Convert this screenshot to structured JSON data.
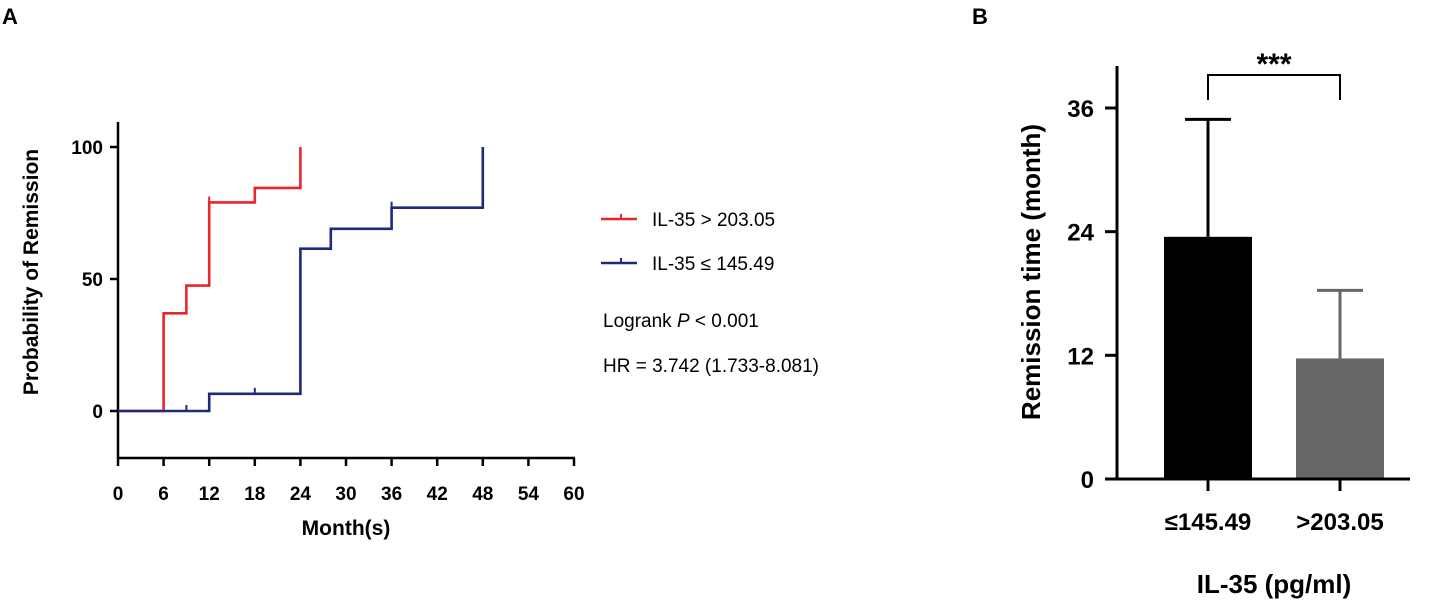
{
  "chart_data": [
    {
      "panel": "A",
      "type": "line",
      "subtype": "kaplan-meier-step",
      "xlabel": "Month(s)",
      "ylabel": "Probability of Remission",
      "xlim": [
        0,
        60
      ],
      "ylim": [
        -17,
        110
      ],
      "x_ticks": [
        0,
        6,
        12,
        18,
        24,
        30,
        36,
        42,
        48,
        54,
        60
      ],
      "y_ticks": [
        0,
        50,
        100
      ],
      "grid": false,
      "legend_position": "right",
      "series": [
        {
          "name": "IL-35 > 203.05",
          "color": "#e8262b",
          "steps": [
            [
              0,
              0
            ],
            [
              6,
              37
            ],
            [
              9,
              47.5
            ],
            [
              12,
              79
            ],
            [
              18,
              84.5
            ],
            [
              24,
              100
            ]
          ],
          "censored": [
            [
              12,
              79
            ]
          ]
        },
        {
          "name": "IL-35 ≤ 145.49",
          "color": "#1f2a7c",
          "steps": [
            [
              0,
              0
            ],
            [
              12,
              6.5
            ],
            [
              24,
              61.5
            ],
            [
              28,
              69
            ],
            [
              36,
              77
            ],
            [
              48,
              100
            ]
          ],
          "censored": [
            [
              9,
              0
            ],
            [
              18,
              6.5
            ],
            [
              36,
              77
            ]
          ]
        }
      ],
      "annotations": {
        "logrank_prefix": "Logrank ",
        "logrank_p": "P",
        "logrank_value": " < 0.001",
        "hr": "HR = 3.742 (1.733-8.081)"
      }
    },
    {
      "panel": "B",
      "type": "bar",
      "xlabel": "IL-35 (pg/ml)",
      "ylabel": "Remission time (month)",
      "categories": [
        "≤145.49",
        ">203.05"
      ],
      "values": [
        23.5,
        11.7
      ],
      "error_upper": [
        34.9,
        18.3
      ],
      "ylim": [
        0,
        40
      ],
      "y_ticks": [
        0,
        12,
        24,
        36
      ],
      "bar_colors": [
        "#000000",
        "#666666"
      ],
      "significance": "***",
      "grid": false
    }
  ],
  "panel_labels": [
    "A",
    "B"
  ]
}
